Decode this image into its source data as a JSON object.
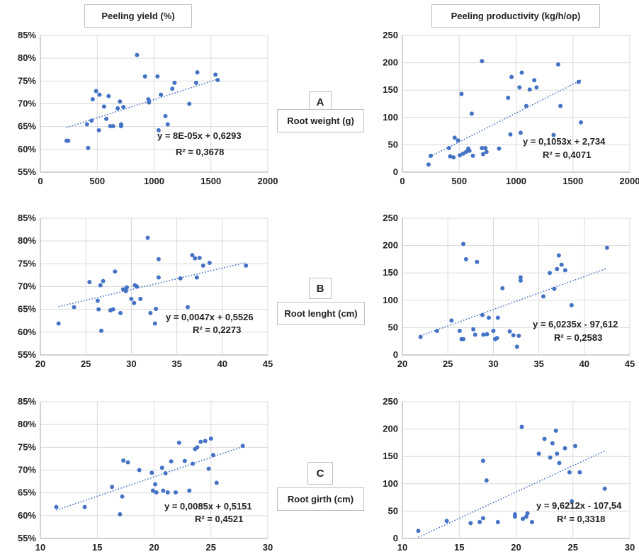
{
  "headers": {
    "left": "Peeling yield (%)",
    "right": "Peeling productivity  (kg/h/op)"
  },
  "rows": [
    {
      "letter": "A",
      "label": "Root weight (g)"
    },
    {
      "letter": "B",
      "label": "Root lenght (cm)"
    },
    {
      "letter": "C",
      "label": "Root girth (cm)"
    }
  ],
  "colors": {
    "point": "#4472c4",
    "trend": "#4472c4",
    "grid": "#d9d9d9",
    "axis": "#a6a6a6"
  },
  "chart_data": [
    {
      "type": "scatter",
      "id": "A-yield",
      "trendline": "linear",
      "equation": "y = 8E-05x + 0,6293",
      "r2": "R² = 0,3678",
      "trend": {
        "slope": 8e-05,
        "intercept": 0.6293
      },
      "xlim": [
        0,
        2000
      ],
      "ylim": [
        0.55,
        0.85
      ],
      "xticks": [
        "0",
        "500",
        "1000",
        "1500",
        "2000"
      ],
      "yticks": [
        "55%",
        "60%",
        "65%",
        "70%",
        "75%",
        "80%",
        "85%"
      ],
      "points": [
        [
          230,
          0.619
        ],
        [
          245,
          0.619
        ],
        [
          410,
          0.655
        ],
        [
          420,
          0.603
        ],
        [
          450,
          0.663
        ],
        [
          460,
          0.71
        ],
        [
          490,
          0.728
        ],
        [
          520,
          0.72
        ],
        [
          515,
          0.642
        ],
        [
          560,
          0.694
        ],
        [
          580,
          0.667
        ],
        [
          600,
          0.717
        ],
        [
          615,
          0.651
        ],
        [
          640,
          0.651
        ],
        [
          680,
          0.69
        ],
        [
          700,
          0.705
        ],
        [
          710,
          0.651
        ],
        [
          710,
          0.655
        ],
        [
          730,
          0.693
        ],
        [
          850,
          0.807
        ],
        [
          920,
          0.76
        ],
        [
          950,
          0.71
        ],
        [
          955,
          0.703
        ],
        [
          1030,
          0.76
        ],
        [
          1040,
          0.642
        ],
        [
          1060,
          0.72
        ],
        [
          1100,
          0.673
        ],
        [
          1120,
          0.655
        ],
        [
          1160,
          0.733
        ],
        [
          1180,
          0.746
        ],
        [
          1310,
          0.7
        ],
        [
          1370,
          0.746
        ],
        [
          1380,
          0.769
        ],
        [
          1540,
          0.764
        ],
        [
          1560,
          0.752
        ]
      ]
    },
    {
      "type": "scatter",
      "id": "A-productivity",
      "trendline": "linear",
      "equation": "y = 0,1053x + 2,734",
      "r2": "R² = 0,4071",
      "trend": {
        "slope": 0.1053,
        "intercept": 2.734
      },
      "xlim": [
        0,
        2000
      ],
      "ylim": [
        0,
        250
      ],
      "xticks": [
        "0",
        "500",
        "1000",
        "1500",
        "2000"
      ],
      "yticks": [
        "0",
        "50",
        "100",
        "150",
        "200",
        "250"
      ],
      "points": [
        [
          230,
          14
        ],
        [
          250,
          30
        ],
        [
          410,
          44
        ],
        [
          420,
          29
        ],
        [
          450,
          27
        ],
        [
          460,
          63
        ],
        [
          490,
          58
        ],
        [
          505,
          31
        ],
        [
          520,
          143
        ],
        [
          535,
          34
        ],
        [
          560,
          37
        ],
        [
          580,
          43
        ],
        [
          590,
          39
        ],
        [
          610,
          107
        ],
        [
          620,
          30
        ],
        [
          700,
          44
        ],
        [
          700,
          203
        ],
        [
          710,
          33
        ],
        [
          730,
          44
        ],
        [
          740,
          37
        ],
        [
          850,
          43
        ],
        [
          930,
          136
        ],
        [
          950,
          69
        ],
        [
          960,
          174
        ],
        [
          1030,
          155
        ],
        [
          1040,
          72
        ],
        [
          1050,
          182
        ],
        [
          1090,
          121
        ],
        [
          1120,
          151
        ],
        [
          1160,
          168
        ],
        [
          1180,
          155
        ],
        [
          1330,
          68
        ],
        [
          1370,
          197
        ],
        [
          1390,
          121
        ],
        [
          1550,
          165
        ],
        [
          1570,
          91
        ]
      ]
    },
    {
      "type": "scatter",
      "id": "B-yield",
      "trendline": "linear",
      "equation": "y = 0,0047x + 0,5526",
      "r2": "R² = 0,2273",
      "trend": {
        "slope": 0.0047,
        "intercept": 0.5526
      },
      "xlim": [
        20,
        45
      ],
      "ylim": [
        0.55,
        0.85
      ],
      "xticks": [
        "20",
        "25",
        "30",
        "35",
        "40",
        "45"
      ],
      "yticks": [
        "55%",
        "60%",
        "65%",
        "70%",
        "75%",
        "80%",
        "85%"
      ],
      "points": [
        [
          22,
          0.619
        ],
        [
          23.7,
          0.655
        ],
        [
          25.4,
          0.71
        ],
        [
          26.3,
          0.669
        ],
        [
          26.4,
          0.65
        ],
        [
          26.6,
          0.703
        ],
        [
          26.7,
          0.603
        ],
        [
          26.9,
          0.712
        ],
        [
          27.7,
          0.648
        ],
        [
          28.0,
          0.65
        ],
        [
          28.2,
          0.733
        ],
        [
          28.8,
          0.642
        ],
        [
          29.1,
          0.694
        ],
        [
          29.4,
          0.69
        ],
        [
          29.5,
          0.698
        ],
        [
          30.0,
          0.673
        ],
        [
          30.3,
          0.664
        ],
        [
          30.4,
          0.703
        ],
        [
          30.6,
          0.7
        ],
        [
          31.0,
          0.673
        ],
        [
          31.8,
          0.807
        ],
        [
          32.1,
          0.642
        ],
        [
          32.6,
          0.619
        ],
        [
          32.7,
          0.651
        ],
        [
          33.0,
          0.76
        ],
        [
          33.0,
          0.72
        ],
        [
          35.4,
          0.718
        ],
        [
          36.2,
          0.655
        ],
        [
          36.7,
          0.769
        ],
        [
          37.0,
          0.762
        ],
        [
          37.2,
          0.72
        ],
        [
          37.5,
          0.763
        ],
        [
          37.9,
          0.746
        ],
        [
          38.6,
          0.752
        ],
        [
          42.6,
          0.746
        ]
      ]
    },
    {
      "type": "scatter",
      "id": "B-productivity",
      "trendline": "linear",
      "equation": "y = 6,0235x - 97,612",
      "r2": "R² = 0,2583",
      "trend": {
        "slope": 6.0235,
        "intercept": -97.612
      },
      "xlim": [
        20,
        45
      ],
      "ylim": [
        0,
        250
      ],
      "xticks": [
        "20",
        "25",
        "30",
        "35",
        "40",
        "45"
      ],
      "yticks": [
        "0",
        "50",
        "100",
        "150",
        "200",
        "250"
      ],
      "points": [
        [
          22,
          33
        ],
        [
          23.8,
          44
        ],
        [
          25.4,
          63
        ],
        [
          26.3,
          44
        ],
        [
          26.5,
          29
        ],
        [
          26.7,
          203
        ],
        [
          26.7,
          29
        ],
        [
          27,
          175
        ],
        [
          27.8,
          47
        ],
        [
          28.0,
          37
        ],
        [
          28.2,
          170
        ],
        [
          28.8,
          73
        ],
        [
          28.9,
          37
        ],
        [
          29.3,
          38
        ],
        [
          29.5,
          68
        ],
        [
          30.0,
          44
        ],
        [
          30.2,
          29
        ],
        [
          30.4,
          31
        ],
        [
          30.5,
          68
        ],
        [
          31.0,
          122
        ],
        [
          31.8,
          43
        ],
        [
          32.2,
          36
        ],
        [
          32.6,
          15
        ],
        [
          32.8,
          35
        ],
        [
          33.0,
          142
        ],
        [
          33.0,
          136
        ],
        [
          35.5,
          107
        ],
        [
          36.2,
          150
        ],
        [
          36.7,
          121
        ],
        [
          37.0,
          157
        ],
        [
          37.2,
          182
        ],
        [
          37.5,
          165
        ],
        [
          37.9,
          155
        ],
        [
          38.6,
          91
        ],
        [
          42.5,
          196
        ]
      ]
    },
    {
      "type": "scatter",
      "id": "C-yield",
      "trendline": "linear",
      "equation": "y = 0,0085x + 0,5151",
      "r2": "R² = 0,4521",
      "trend": {
        "slope": 0.0085,
        "intercept": 0.5151
      },
      "xlim": [
        10,
        30
      ],
      "ylim": [
        0.55,
        0.85
      ],
      "xticks": [
        "10",
        "15",
        "20",
        "25",
        "30"
      ],
      "yticks": [
        "55%",
        "60%",
        "65%",
        "70%",
        "75%",
        "80%",
        "85%"
      ],
      "points": [
        [
          11.4,
          0.619
        ],
        [
          13.9,
          0.619
        ],
        [
          16.3,
          0.663
        ],
        [
          17.0,
          0.603
        ],
        [
          17.2,
          0.642
        ],
        [
          17.3,
          0.721
        ],
        [
          17.7,
          0.717
        ],
        [
          18.7,
          0.7
        ],
        [
          19.8,
          0.694
        ],
        [
          19.9,
          0.655
        ],
        [
          20.1,
          0.669
        ],
        [
          20.2,
          0.651
        ],
        [
          20.7,
          0.705
        ],
        [
          20.8,
          0.655
        ],
        [
          21.0,
          0.693
        ],
        [
          21.2,
          0.651
        ],
        [
          21.5,
          0.719
        ],
        [
          21.9,
          0.651
        ],
        [
          22.2,
          0.76
        ],
        [
          22.7,
          0.72
        ],
        [
          23.1,
          0.655
        ],
        [
          23.4,
          0.714
        ],
        [
          23.6,
          0.746
        ],
        [
          23.8,
          0.75
        ],
        [
          24.1,
          0.762
        ],
        [
          24.5,
          0.764
        ],
        [
          24.8,
          0.703
        ],
        [
          25.0,
          0.769
        ],
        [
          25.2,
          0.733
        ],
        [
          25.5,
          0.672
        ],
        [
          27.8,
          0.753
        ]
      ]
    },
    {
      "type": "scatter",
      "id": "C-productivity",
      "trendline": "linear",
      "equation": "y = 9,6212x - 107,54",
      "r2": "R² = 0,3318",
      "trend": {
        "slope": 9.6212,
        "intercept": -107.54
      },
      "xlim": [
        10,
        30
      ],
      "ylim": [
        0,
        250
      ],
      "xticks": [
        "10",
        "15",
        "20",
        "25",
        "30"
      ],
      "yticks": [
        "0",
        "50",
        "100",
        "150",
        "200",
        "250"
      ],
      "points": [
        [
          11.4,
          14
        ],
        [
          13.9,
          32
        ],
        [
          16.0,
          28
        ],
        [
          16.8,
          30
        ],
        [
          17.1,
          37
        ],
        [
          17.1,
          142
        ],
        [
          17.4,
          106
        ],
        [
          18.4,
          30
        ],
        [
          19.9,
          44
        ],
        [
          19.9,
          40
        ],
        [
          20.5,
          204
        ],
        [
          20.6,
          36
        ],
        [
          20.9,
          40
        ],
        [
          21.0,
          46
        ],
        [
          21.4,
          30
        ],
        [
          22.0,
          155
        ],
        [
          22.5,
          182
        ],
        [
          23.0,
          148
        ],
        [
          23.2,
          174
        ],
        [
          23.5,
          197
        ],
        [
          23.6,
          155
        ],
        [
          23.8,
          138
        ],
        [
          24.3,
          165
        ],
        [
          24.7,
          121
        ],
        [
          24.9,
          68
        ],
        [
          25.2,
          169
        ],
        [
          25.6,
          121
        ],
        [
          27.8,
          91
        ]
      ]
    }
  ]
}
